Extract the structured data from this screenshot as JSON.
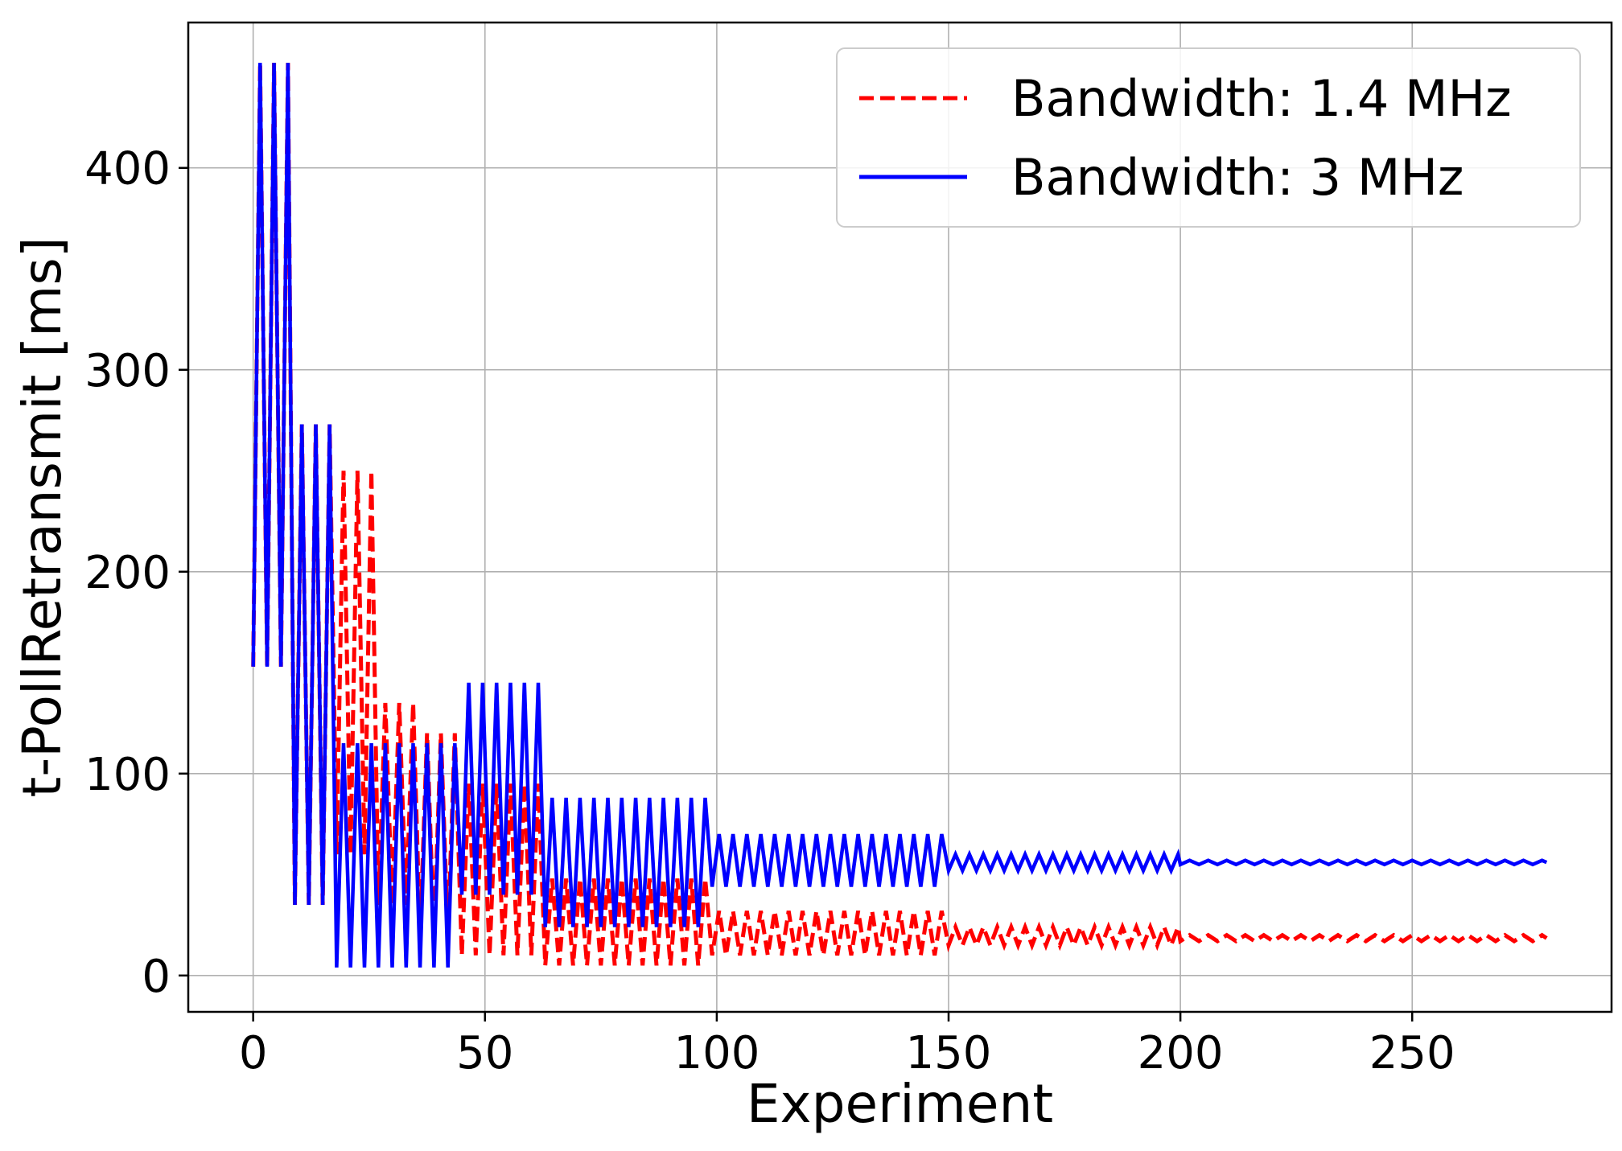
{
  "chart_data": {
    "type": "line",
    "title": "",
    "xlabel": "Experiment",
    "ylabel": "t-PollRetransmit [ms]",
    "xlim": [
      -14,
      293
    ],
    "ylim": [
      -18,
      472
    ],
    "x_ticks": [
      0,
      50,
      100,
      150,
      200,
      250
    ],
    "y_ticks": [
      0,
      100,
      200,
      300,
      400
    ],
    "grid": true,
    "legend_position": "top-right",
    "series": [
      {
        "name": "Bandwidth: 1.4 MHz",
        "color": "#ff0000",
        "linestyle": "dashed",
        "segments": [
          {
            "x_start": 0,
            "x_end": 9,
            "period": 3,
            "min": 153,
            "max": 452
          },
          {
            "x_start": 9,
            "x_end": 18,
            "period": 3,
            "min": 35,
            "max": 273
          },
          {
            "x_start": 18,
            "x_end": 27,
            "period": 3,
            "min": 60,
            "max": 250
          },
          {
            "x_start": 27,
            "x_end": 36,
            "period": 3,
            "min": 35,
            "max": 135
          },
          {
            "x_start": 36,
            "x_end": 45,
            "period": 3,
            "min": 20,
            "max": 120
          },
          {
            "x_start": 45,
            "x_end": 63,
            "period": 3,
            "min": 10,
            "max": 95
          },
          {
            "x_start": 63,
            "x_end": 99,
            "period": 3,
            "min": 5,
            "max": 48
          },
          {
            "x_start": 99,
            "x_end": 150,
            "period": 3,
            "min": 10,
            "max": 32
          },
          {
            "x_start": 150,
            "x_end": 200,
            "period": 3,
            "min": 15,
            "max": 24
          },
          {
            "x_start": 200,
            "x_end": 279,
            "period": 4,
            "min": 17,
            "max": 20
          }
        ]
      },
      {
        "name": "Bandwidth: 3 MHz",
        "color": "#0000ff",
        "linestyle": "solid",
        "segments": [
          {
            "x_start": 0,
            "x_end": 9,
            "period": 3,
            "min": 153,
            "max": 452
          },
          {
            "x_start": 9,
            "x_end": 18,
            "period": 3,
            "min": 35,
            "max": 273
          },
          {
            "x_start": 18,
            "x_end": 45,
            "period": 3,
            "min": 4,
            "max": 115
          },
          {
            "x_start": 45,
            "x_end": 63,
            "period": 3,
            "min": 40,
            "max": 145
          },
          {
            "x_start": 63,
            "x_end": 99,
            "period": 3,
            "min": 24,
            "max": 88
          },
          {
            "x_start": 99,
            "x_end": 150,
            "period": 3,
            "min": 44,
            "max": 70
          },
          {
            "x_start": 150,
            "x_end": 200,
            "period": 3,
            "min": 52,
            "max": 60
          },
          {
            "x_start": 200,
            "x_end": 279,
            "period": 4,
            "min": 55,
            "max": 57
          }
        ]
      }
    ]
  }
}
